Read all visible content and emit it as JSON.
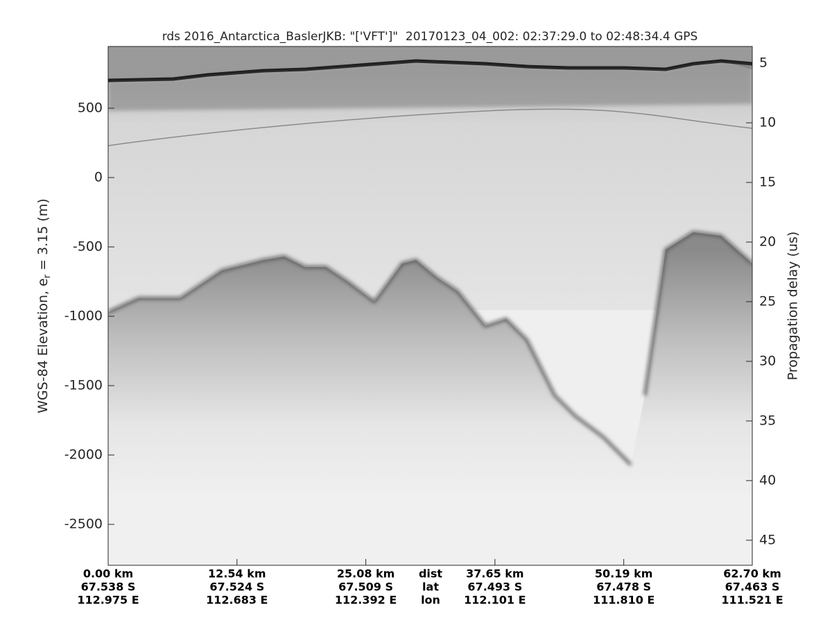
{
  "chart_data": {
    "type": "radargram",
    "title": "rds 2016_Antarctica_BaslerJKB: \"['VFT']\"  20170123_04_002: 02:37:29.0 to 02:48:34.4 GPS",
    "ylabel": [
      "WGS-84 Elevation, e",
      "r",
      " = 3.15 (m)"
    ],
    "y2label": "Propagation delay (us)",
    "ylim": [
      -2795,
      945
    ],
    "yticks": [
      500,
      0,
      -500,
      -1000,
      -1500,
      -2000,
      -2500
    ],
    "y2lim": [
      47.1,
      3.6
    ],
    "y2ticks": [
      5,
      10,
      15,
      20,
      25,
      30,
      35,
      40,
      45
    ],
    "xlim": [
      0,
      62.7
    ],
    "xticks": [
      {
        "value": 0,
        "label": "0.00 km"
      },
      {
        "value": 12.54,
        "label": "12.54 km"
      },
      {
        "value": 25.08,
        "label": "25.08 km"
      },
      {
        "value": 37.65,
        "label": "37.65 km"
      },
      {
        "value": 50.19,
        "label": "50.19 km"
      },
      {
        "value": 62.7,
        "label": "62.70 km"
      }
    ],
    "lat_labels": [
      "67.538 S",
      "67.524 S",
      "67.509 S",
      "67.493 S",
      "67.478 S",
      "67.463 S"
    ],
    "lon_labels": [
      "112.975 E",
      "112.683 E",
      "112.392 E",
      "112.101 E",
      "111.810 E",
      "111.521 E"
    ],
    "row_labels": [
      "dist",
      "lat",
      "lon"
    ]
  }
}
